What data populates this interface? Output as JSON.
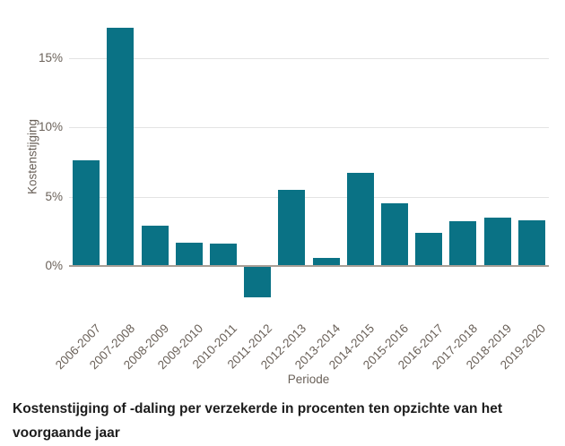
{
  "chart_data": {
    "type": "bar",
    "categories": [
      "2006-2007",
      "2007-2008",
      "2008-2009",
      "2009-2010",
      "2010-2011",
      "2011-2012",
      "2012-2013",
      "2013-2014",
      "2014-2015",
      "2015-2016",
      "2016-2017",
      "2017-2018",
      "2018-2019",
      "2019-2020"
    ],
    "values": [
      7.6,
      17.2,
      2.9,
      1.7,
      1.6,
      -2.2,
      5.5,
      0.6,
      6.7,
      4.5,
      2.4,
      3.2,
      3.5,
      3.3
    ],
    "xlabel": "Periode",
    "ylabel": "Kostenstijging",
    "yticks": [
      0,
      5,
      10,
      15
    ],
    "ytick_suffix": "%",
    "ylim": [
      -3,
      18
    ],
    "grid": true,
    "legend": false,
    "bar_color": "#0a7285",
    "gridline_color": "#e3e3e3",
    "zeroline_color": "#a89e96",
    "tick_label_color": "#6a6159"
  },
  "caption": {
    "line1": "Kostenstijging of -daling per verzekerde in procenten ten opzichte van het",
    "line2": "voorgaande jaar"
  }
}
